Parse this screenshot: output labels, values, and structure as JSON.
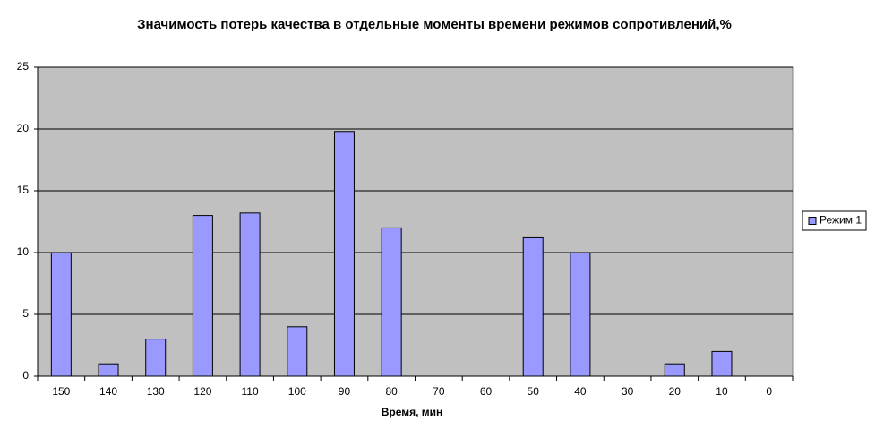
{
  "chart_data": {
    "type": "bar",
    "title": "Значимость потерь качества в отдельные моменты времени режимов сопротивлений,%",
    "x_label": "Время, мин",
    "categories": [
      "150",
      "140",
      "130",
      "120",
      "110",
      "100",
      "90",
      "80",
      "70",
      "60",
      "50",
      "40",
      "30",
      "20",
      "10",
      "0"
    ],
    "series": [
      {
        "name": "Режим 1",
        "color": "#9999ff",
        "values": [
          10,
          1,
          3,
          13,
          13.2,
          4,
          19.8,
          12,
          0,
          0,
          11.2,
          10,
          0,
          1,
          2,
          0
        ]
      }
    ],
    "ylim": [
      0,
      25
    ],
    "yticks": [
      0,
      5,
      10,
      15,
      20,
      25
    ],
    "grid": true,
    "legend": "right"
  }
}
